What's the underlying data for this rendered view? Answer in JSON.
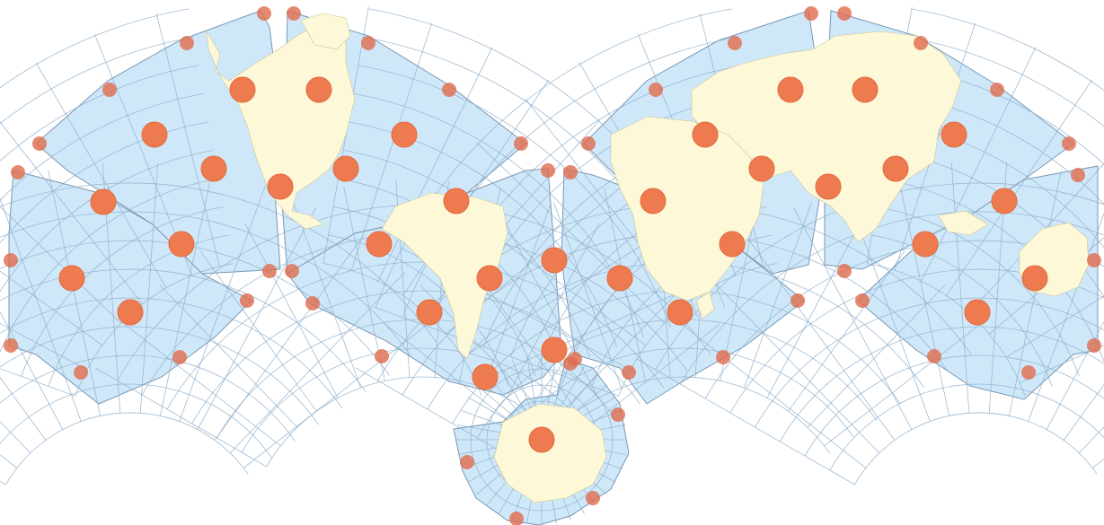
{
  "map": {
    "projection_kind": "interrupted polyhedral world map with Tissot indicatrix circles",
    "colors": {
      "ocean": "#cfe8f9",
      "land": "#fdf8d8",
      "tissot": "#ee7b4f",
      "graticule": "#8fb0cc",
      "lobe_outline": "#7a97b3",
      "background": "#ffffff"
    },
    "features": [
      "graticule",
      "tissot-indicatrix",
      "continents",
      "interrupted-lobes"
    ]
  }
}
